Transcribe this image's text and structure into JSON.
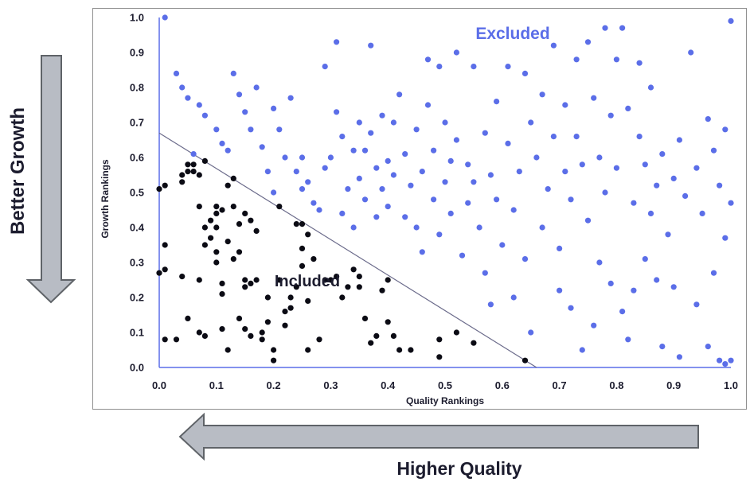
{
  "chart_data": {
    "type": "scatter",
    "xlabel": "Quality Rankings",
    "ylabel": "Growth Rankings",
    "xlim": [
      0.0,
      1.0
    ],
    "ylim": [
      0.0,
      1.0
    ],
    "x_ticks": [
      "0.0",
      "0.1",
      "0.2",
      "0.3",
      "0.4",
      "0.5",
      "0.6",
      "0.7",
      "0.8",
      "0.9",
      "1.0"
    ],
    "y_ticks": [
      "0.0",
      "0.1",
      "0.2",
      "0.3",
      "0.4",
      "0.5",
      "0.6",
      "0.7",
      "0.8",
      "0.9",
      "1.0"
    ],
    "grid": false,
    "boundary_line": [
      [
        0.0,
        0.67
      ],
      [
        0.66,
        0.0
      ]
    ],
    "annotations": {
      "excluded": "Excluded",
      "included": "Included",
      "left_arrow": "Better Growth",
      "bottom_arrow": "Higher Quality"
    },
    "colors": {
      "excluded": "#5b6ee8",
      "included": "#0b0b14",
      "excluded_label": "#5b6ee8",
      "included_label": "#1c1c2e",
      "arrow_fill": "#b8bcc4",
      "arrow_stroke": "#5f6368",
      "boundary_line": "#6a6a8a",
      "axis": "#5b6ee8"
    },
    "series": [
      {
        "name": "Included",
        "points": [
          [
            0.0,
            0.27
          ],
          [
            0.0,
            0.51
          ],
          [
            0.01,
            0.52
          ],
          [
            0.01,
            0.35
          ],
          [
            0.01,
            0.28
          ],
          [
            0.01,
            0.08
          ],
          [
            0.03,
            0.08
          ],
          [
            0.04,
            0.55
          ],
          [
            0.04,
            0.53
          ],
          [
            0.04,
            0.26
          ],
          [
            0.05,
            0.58
          ],
          [
            0.05,
            0.56
          ],
          [
            0.05,
            0.14
          ],
          [
            0.06,
            0.58
          ],
          [
            0.06,
            0.56
          ],
          [
            0.07,
            0.55
          ],
          [
            0.07,
            0.46
          ],
          [
            0.07,
            0.25
          ],
          [
            0.07,
            0.1
          ],
          [
            0.08,
            0.59
          ],
          [
            0.08,
            0.4
          ],
          [
            0.08,
            0.35
          ],
          [
            0.08,
            0.09
          ],
          [
            0.09,
            0.42
          ],
          [
            0.09,
            0.37
          ],
          [
            0.1,
            0.46
          ],
          [
            0.1,
            0.44
          ],
          [
            0.1,
            0.4
          ],
          [
            0.1,
            0.33
          ],
          [
            0.1,
            0.3
          ],
          [
            0.11,
            0.45
          ],
          [
            0.11,
            0.24
          ],
          [
            0.11,
            0.21
          ],
          [
            0.11,
            0.11
          ],
          [
            0.12,
            0.52
          ],
          [
            0.12,
            0.36
          ],
          [
            0.12,
            0.05
          ],
          [
            0.13,
            0.54
          ],
          [
            0.13,
            0.46
          ],
          [
            0.13,
            0.31
          ],
          [
            0.14,
            0.41
          ],
          [
            0.14,
            0.33
          ],
          [
            0.14,
            0.14
          ],
          [
            0.15,
            0.44
          ],
          [
            0.15,
            0.25
          ],
          [
            0.15,
            0.23
          ],
          [
            0.15,
            0.11
          ],
          [
            0.16,
            0.42
          ],
          [
            0.16,
            0.24
          ],
          [
            0.16,
            0.09
          ],
          [
            0.17,
            0.39
          ],
          [
            0.17,
            0.25
          ],
          [
            0.18,
            0.1
          ],
          [
            0.18,
            0.08
          ],
          [
            0.19,
            0.2
          ],
          [
            0.19,
            0.13
          ],
          [
            0.2,
            0.05
          ],
          [
            0.2,
            0.02
          ],
          [
            0.21,
            0.46
          ],
          [
            0.21,
            0.25
          ],
          [
            0.22,
            0.16
          ],
          [
            0.22,
            0.12
          ],
          [
            0.23,
            0.17
          ],
          [
            0.23,
            0.2
          ],
          [
            0.24,
            0.41
          ],
          [
            0.24,
            0.23
          ],
          [
            0.25,
            0.41
          ],
          [
            0.25,
            0.34
          ],
          [
            0.25,
            0.29
          ],
          [
            0.26,
            0.38
          ],
          [
            0.26,
            0.19
          ],
          [
            0.26,
            0.05
          ],
          [
            0.27,
            0.31
          ],
          [
            0.28,
            0.08
          ],
          [
            0.29,
            0.25
          ],
          [
            0.3,
            0.25
          ],
          [
            0.31,
            0.26
          ],
          [
            0.32,
            0.2
          ],
          [
            0.33,
            0.23
          ],
          [
            0.34,
            0.28
          ],
          [
            0.35,
            0.26
          ],
          [
            0.35,
            0.23
          ],
          [
            0.36,
            0.14
          ],
          [
            0.37,
            0.07
          ],
          [
            0.38,
            0.09
          ],
          [
            0.39,
            0.22
          ],
          [
            0.4,
            0.25
          ],
          [
            0.4,
            0.13
          ],
          [
            0.41,
            0.09
          ],
          [
            0.42,
            0.05
          ],
          [
            0.44,
            0.05
          ],
          [
            0.49,
            0.08
          ],
          [
            0.49,
            0.03
          ],
          [
            0.52,
            0.1
          ],
          [
            0.55,
            0.07
          ],
          [
            0.64,
            0.02
          ]
        ]
      },
      {
        "name": "Excluded",
        "points": [
          [
            0.01,
            1.0
          ],
          [
            0.03,
            0.84
          ],
          [
            0.04,
            0.8
          ],
          [
            0.05,
            0.77
          ],
          [
            0.06,
            0.61
          ],
          [
            0.07,
            0.75
          ],
          [
            0.08,
            0.72
          ],
          [
            0.1,
            0.68
          ],
          [
            0.11,
            0.64
          ],
          [
            0.12,
            0.62
          ],
          [
            0.13,
            0.84
          ],
          [
            0.14,
            0.78
          ],
          [
            0.15,
            0.73
          ],
          [
            0.16,
            0.68
          ],
          [
            0.17,
            0.8
          ],
          [
            0.18,
            0.63
          ],
          [
            0.19,
            0.56
          ],
          [
            0.2,
            0.74
          ],
          [
            0.2,
            0.5
          ],
          [
            0.21,
            0.68
          ],
          [
            0.22,
            0.6
          ],
          [
            0.23,
            0.77
          ],
          [
            0.24,
            0.56
          ],
          [
            0.25,
            0.6
          ],
          [
            0.25,
            0.51
          ],
          [
            0.26,
            0.53
          ],
          [
            0.27,
            0.47
          ],
          [
            0.28,
            0.45
          ],
          [
            0.29,
            0.57
          ],
          [
            0.29,
            0.86
          ],
          [
            0.3,
            0.6
          ],
          [
            0.31,
            0.93
          ],
          [
            0.31,
            0.73
          ],
          [
            0.32,
            0.66
          ],
          [
            0.32,
            0.44
          ],
          [
            0.33,
            0.51
          ],
          [
            0.34,
            0.62
          ],
          [
            0.34,
            0.4
          ],
          [
            0.35,
            0.7
          ],
          [
            0.35,
            0.54
          ],
          [
            0.36,
            0.48
          ],
          [
            0.36,
            0.62
          ],
          [
            0.37,
            0.92
          ],
          [
            0.37,
            0.67
          ],
          [
            0.38,
            0.57
          ],
          [
            0.38,
            0.43
          ],
          [
            0.39,
            0.72
          ],
          [
            0.39,
            0.51
          ],
          [
            0.4,
            0.59
          ],
          [
            0.4,
            0.46
          ],
          [
            0.41,
            0.55
          ],
          [
            0.41,
            0.7
          ],
          [
            0.42,
            0.78
          ],
          [
            0.43,
            0.61
          ],
          [
            0.43,
            0.43
          ],
          [
            0.44,
            0.52
          ],
          [
            0.45,
            0.68
          ],
          [
            0.45,
            0.4
          ],
          [
            0.46,
            0.56
          ],
          [
            0.46,
            0.33
          ],
          [
            0.47,
            0.88
          ],
          [
            0.47,
            0.75
          ],
          [
            0.48,
            0.48
          ],
          [
            0.48,
            0.62
          ],
          [
            0.49,
            0.86
          ],
          [
            0.49,
            0.38
          ],
          [
            0.5,
            0.7
          ],
          [
            0.5,
            0.53
          ],
          [
            0.51,
            0.59
          ],
          [
            0.51,
            0.44
          ],
          [
            0.52,
            0.9
          ],
          [
            0.52,
            0.65
          ],
          [
            0.53,
            0.32
          ],
          [
            0.54,
            0.58
          ],
          [
            0.54,
            0.47
          ],
          [
            0.55,
            0.86
          ],
          [
            0.55,
            0.53
          ],
          [
            0.56,
            0.4
          ],
          [
            0.57,
            0.67
          ],
          [
            0.57,
            0.27
          ],
          [
            0.58,
            0.55
          ],
          [
            0.58,
            0.18
          ],
          [
            0.59,
            0.76
          ],
          [
            0.59,
            0.48
          ],
          [
            0.6,
            0.35
          ],
          [
            0.61,
            0.64
          ],
          [
            0.61,
            0.86
          ],
          [
            0.62,
            0.45
          ],
          [
            0.62,
            0.2
          ],
          [
            0.63,
            0.56
          ],
          [
            0.64,
            0.84
          ],
          [
            0.64,
            0.31
          ],
          [
            0.65,
            0.7
          ],
          [
            0.65,
            0.1
          ],
          [
            0.66,
            0.6
          ],
          [
            0.67,
            0.78
          ],
          [
            0.67,
            0.4
          ],
          [
            0.68,
            0.51
          ],
          [
            0.69,
            0.92
          ],
          [
            0.69,
            0.66
          ],
          [
            0.7,
            0.34
          ],
          [
            0.7,
            0.22
          ],
          [
            0.71,
            0.75
          ],
          [
            0.71,
            0.56
          ],
          [
            0.72,
            0.48
          ],
          [
            0.72,
            0.17
          ],
          [
            0.73,
            0.88
          ],
          [
            0.73,
            0.66
          ],
          [
            0.74,
            0.58
          ],
          [
            0.74,
            0.05
          ],
          [
            0.75,
            0.93
          ],
          [
            0.75,
            0.42
          ],
          [
            0.76,
            0.77
          ],
          [
            0.76,
            0.12
          ],
          [
            0.77,
            0.6
          ],
          [
            0.77,
            0.3
          ],
          [
            0.78,
            0.97
          ],
          [
            0.78,
            0.5
          ],
          [
            0.79,
            0.72
          ],
          [
            0.79,
            0.24
          ],
          [
            0.8,
            0.88
          ],
          [
            0.8,
            0.57
          ],
          [
            0.81,
            0.97
          ],
          [
            0.81,
            0.16
          ],
          [
            0.82,
            0.74
          ],
          [
            0.82,
            0.08
          ],
          [
            0.83,
            0.47
          ],
          [
            0.83,
            0.22
          ],
          [
            0.84,
            0.66
          ],
          [
            0.84,
            0.87
          ],
          [
            0.85,
            0.58
          ],
          [
            0.85,
            0.31
          ],
          [
            0.86,
            0.8
          ],
          [
            0.86,
            0.44
          ],
          [
            0.87,
            0.52
          ],
          [
            0.87,
            0.25
          ],
          [
            0.88,
            0.61
          ],
          [
            0.88,
            0.06
          ],
          [
            0.89,
            0.38
          ],
          [
            0.9,
            0.54
          ],
          [
            0.9,
            0.23
          ],
          [
            0.91,
            0.65
          ],
          [
            0.91,
            0.03
          ],
          [
            0.92,
            0.49
          ],
          [
            0.93,
            0.9
          ],
          [
            0.94,
            0.57
          ],
          [
            0.94,
            0.18
          ],
          [
            0.95,
            0.44
          ],
          [
            0.96,
            0.71
          ],
          [
            0.96,
            0.06
          ],
          [
            0.97,
            0.62
          ],
          [
            0.97,
            0.27
          ],
          [
            0.98,
            0.52
          ],
          [
            0.98,
            0.02
          ],
          [
            0.99,
            0.68
          ],
          [
            0.99,
            0.37
          ],
          [
            0.99,
            0.01
          ],
          [
            1.0,
            0.99
          ],
          [
            1.0,
            0.47
          ],
          [
            1.0,
            0.02
          ]
        ]
      }
    ]
  }
}
